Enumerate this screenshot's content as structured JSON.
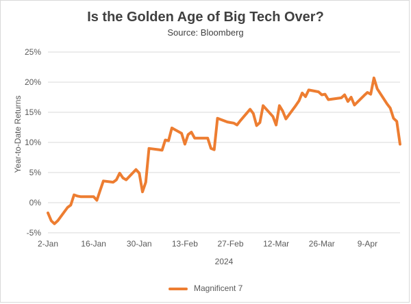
{
  "chart_data": {
    "type": "line",
    "title": "Is the Golden Age of Big Tech Over?",
    "subtitle": "Source: Bloomberg",
    "xlabel": "2024",
    "ylabel": "Year-to-Date Returns",
    "y_ticks": [
      "-5%",
      "0%",
      "5%",
      "10%",
      "15%",
      "20%",
      "25%"
    ],
    "ylim": [
      -5,
      25
    ],
    "x_ticks": [
      "2-Jan",
      "16-Jan",
      "30-Jan",
      "13-Feb",
      "27-Feb",
      "12-Mar",
      "26-Mar",
      "9-Apr"
    ],
    "xlim": [
      "2024-01-02",
      "2024-04-19"
    ],
    "grid": "horizontal",
    "legend_position": "bottom",
    "color": "#ED7D31",
    "series": [
      {
        "name": "Magnificent 7",
        "x": [
          "2024-01-02",
          "2024-01-03",
          "2024-01-04",
          "2024-01-05",
          "2024-01-08",
          "2024-01-09",
          "2024-01-10",
          "2024-01-11",
          "2024-01-12",
          "2024-01-16",
          "2024-01-17",
          "2024-01-18",
          "2024-01-19",
          "2024-01-22",
          "2024-01-23",
          "2024-01-24",
          "2024-01-25",
          "2024-01-26",
          "2024-01-29",
          "2024-01-30",
          "2024-01-31",
          "2024-02-01",
          "2024-02-02",
          "2024-02-05",
          "2024-02-06",
          "2024-02-07",
          "2024-02-08",
          "2024-02-09",
          "2024-02-12",
          "2024-02-13",
          "2024-02-14",
          "2024-02-15",
          "2024-02-16",
          "2024-02-20",
          "2024-02-21",
          "2024-02-22",
          "2024-02-23",
          "2024-02-26",
          "2024-02-27",
          "2024-02-28",
          "2024-02-29",
          "2024-03-01",
          "2024-03-04",
          "2024-03-05",
          "2024-03-06",
          "2024-03-07",
          "2024-03-08",
          "2024-03-11",
          "2024-03-12",
          "2024-03-13",
          "2024-03-14",
          "2024-03-15",
          "2024-03-18",
          "2024-03-19",
          "2024-03-20",
          "2024-03-21",
          "2024-03-22",
          "2024-03-25",
          "2024-03-26",
          "2024-03-27",
          "2024-03-28",
          "2024-04-01",
          "2024-04-02",
          "2024-04-03",
          "2024-04-04",
          "2024-04-05",
          "2024-04-08",
          "2024-04-09",
          "2024-04-10",
          "2024-04-11",
          "2024-04-12",
          "2024-04-15",
          "2024-04-16",
          "2024-04-17",
          "2024-04-18",
          "2024-04-19"
        ],
        "y": [
          -1.7,
          -3.0,
          -3.5,
          -3.0,
          -0.8,
          -0.4,
          1.3,
          1.1,
          1.0,
          1.0,
          0.4,
          2.0,
          3.6,
          3.4,
          3.8,
          4.9,
          4.1,
          3.8,
          5.5,
          4.9,
          1.8,
          3.4,
          9.0,
          8.8,
          8.7,
          10.4,
          10.3,
          12.4,
          11.5,
          9.7,
          11.3,
          11.7,
          10.7,
          10.7,
          9.0,
          8.8,
          14.0,
          13.4,
          13.3,
          13.2,
          12.9,
          13.6,
          15.5,
          14.8,
          12.8,
          13.3,
          16.1,
          14.3,
          12.9,
          16.1,
          15.2,
          13.9,
          16.1,
          16.9,
          18.2,
          17.6,
          18.7,
          18.4,
          17.9,
          18.0,
          17.1,
          17.4,
          17.9,
          16.8,
          17.5,
          16.2,
          17.8,
          18.3,
          18.0,
          20.7,
          18.9,
          16.4,
          15.7,
          14.0,
          13.5,
          9.7
        ]
      }
    ]
  }
}
